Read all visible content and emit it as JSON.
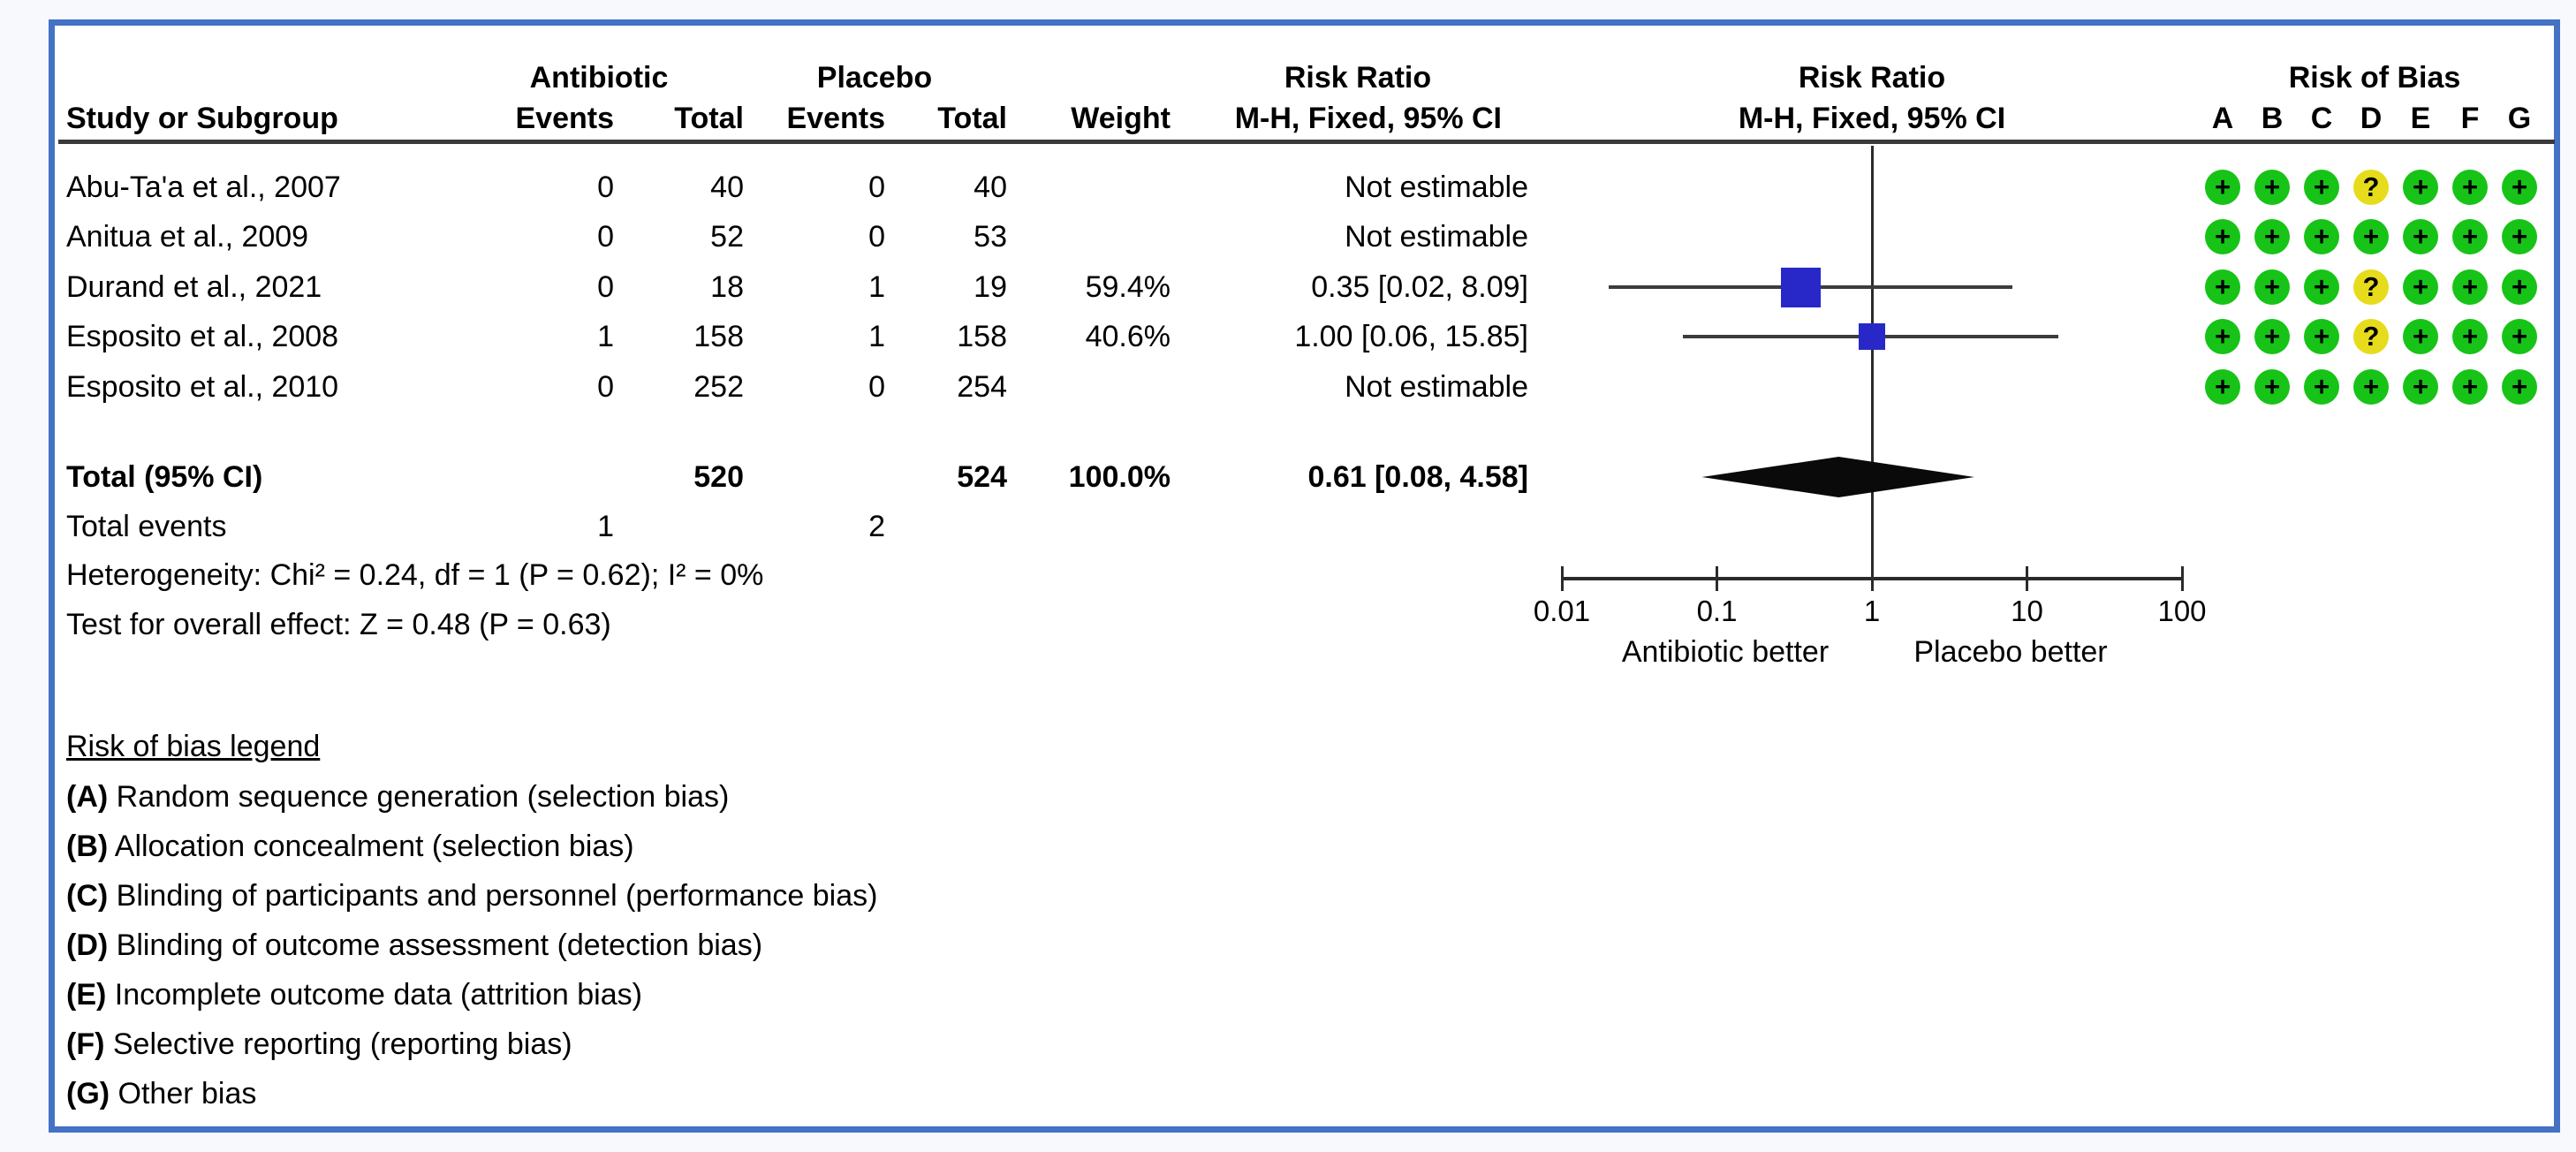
{
  "table": {
    "headers": {
      "study": "Study or Subgroup",
      "group1": "Antibiotic",
      "group2": "Placebo",
      "events": "Events",
      "total": "Total",
      "weight": "Weight",
      "rr_title": "Risk Ratio",
      "rr_sub": "M-H, Fixed, 95% CI",
      "rob_title": "Risk of Bias",
      "rob_letters": [
        "A",
        "B",
        "C",
        "D",
        "E",
        "F",
        "G"
      ]
    },
    "rows": [
      {
        "study": "Abu-Ta'a et al., 2007",
        "e1": "0",
        "t1": "40",
        "e2": "0",
        "t2": "40",
        "weight": "",
        "rr_text": "Not estimable",
        "rr": null,
        "lo": null,
        "hi": null,
        "weight_num": null,
        "rob": [
          "+",
          "+",
          "+",
          "?",
          "+",
          "+",
          "+"
        ]
      },
      {
        "study": "Anitua et al., 2009",
        "e1": "0",
        "t1": "52",
        "e2": "0",
        "t2": "53",
        "weight": "",
        "rr_text": "Not estimable",
        "rr": null,
        "lo": null,
        "hi": null,
        "weight_num": null,
        "rob": [
          "+",
          "+",
          "+",
          "+",
          "+",
          "+",
          "+"
        ]
      },
      {
        "study": "Durand et al., 2021",
        "e1": "0",
        "t1": "18",
        "e2": "1",
        "t2": "19",
        "weight": "59.4%",
        "rr_text": "0.35 [0.02, 8.09]",
        "rr": 0.35,
        "lo": 0.02,
        "hi": 8.09,
        "weight_num": 59.4,
        "rob": [
          "+",
          "+",
          "+",
          "?",
          "+",
          "+",
          "+"
        ]
      },
      {
        "study": "Esposito et al., 2008",
        "e1": "1",
        "t1": "158",
        "e2": "1",
        "t2": "158",
        "weight": "40.6%",
        "rr_text": "1.00 [0.06, 15.85]",
        "rr": 1.0,
        "lo": 0.06,
        "hi": 15.85,
        "weight_num": 40.6,
        "rob": [
          "+",
          "+",
          "+",
          "?",
          "+",
          "+",
          "+"
        ]
      },
      {
        "study": "Esposito et al., 2010",
        "e1": "0",
        "t1": "252",
        "e2": "0",
        "t2": "254",
        "weight": "",
        "rr_text": "Not estimable",
        "rr": null,
        "lo": null,
        "hi": null,
        "weight_num": null,
        "rob": [
          "+",
          "+",
          "+",
          "+",
          "+",
          "+",
          "+"
        ]
      }
    ],
    "total": {
      "label": "Total (95% CI)",
      "t1": "520",
      "t2": "524",
      "weight": "100.0%",
      "rr_text": "0.61 [0.08, 4.58]",
      "rr": 0.61,
      "lo": 0.08,
      "hi": 4.58
    },
    "total_events": {
      "label": "Total events",
      "e1": "1",
      "e2": "2"
    },
    "heterogeneity": "Heterogeneity: Chi² = 0.24, df = 1 (P = 0.62); I² = 0%",
    "overall_effect": "Test for overall effect: Z = 0.48 (P = 0.63)"
  },
  "axis": {
    "ticks": [
      "0.01",
      "0.1",
      "1",
      "10",
      "100"
    ],
    "tick_values": [
      0.01,
      0.1,
      1,
      10,
      100
    ],
    "left_label": "Antibiotic better",
    "right_label": "Placebo better"
  },
  "legend": {
    "title": "Risk of bias legend",
    "items": [
      {
        "tag": "(A)",
        "text": "Random sequence generation (selection bias)"
      },
      {
        "tag": "(B)",
        "text": "Allocation concealment (selection bias)"
      },
      {
        "tag": "(C)",
        "text": "Blinding of participants and personnel (performance bias)"
      },
      {
        "tag": "(D)",
        "text": "Blinding of outcome assessment (detection bias)"
      },
      {
        "tag": "(E)",
        "text": "Incomplete outcome data (attrition bias)"
      },
      {
        "tag": "(F)",
        "text": "Selective reporting (reporting bias)"
      },
      {
        "tag": "(G)",
        "text": "Other bias"
      }
    ]
  },
  "colors": {
    "frame_border": "#4472c4",
    "effect_square": "#2828c8",
    "diamond": "#0a0a0a",
    "rob_low": "#17c317",
    "rob_unclear": "#e6dc1c",
    "lines": "#2b2b2b"
  },
  "chart_data": {
    "type": "scatter",
    "subtype": "forest_plot_meta_analysis",
    "title": "Risk Ratio, M-H, Fixed, 95% CI",
    "x_scale": "log10",
    "x_ticks": [
      0.01,
      0.1,
      1,
      10,
      100
    ],
    "xlim": [
      0.01,
      100
    ],
    "x_axis_labels": {
      "left": "Antibiotic better",
      "right": "Placebo better"
    },
    "studies": [
      {
        "name": "Abu-Ta'a et al., 2007",
        "events_antibiotic": 0,
        "total_antibiotic": 40,
        "events_placebo": 0,
        "total_placebo": 40,
        "weight_pct": null,
        "rr": null,
        "ci": null,
        "estimable": false,
        "risk_of_bias": [
          "+",
          "+",
          "+",
          "?",
          "+",
          "+",
          "+"
        ]
      },
      {
        "name": "Anitua et al., 2009",
        "events_antibiotic": 0,
        "total_antibiotic": 52,
        "events_placebo": 0,
        "total_placebo": 53,
        "weight_pct": null,
        "rr": null,
        "ci": null,
        "estimable": false,
        "risk_of_bias": [
          "+",
          "+",
          "+",
          "+",
          "+",
          "+",
          "+"
        ]
      },
      {
        "name": "Durand et al., 2021",
        "events_antibiotic": 0,
        "total_antibiotic": 18,
        "events_placebo": 1,
        "total_placebo": 19,
        "weight_pct": 59.4,
        "rr": 0.35,
        "ci": [
          0.02,
          8.09
        ],
        "estimable": true,
        "risk_of_bias": [
          "+",
          "+",
          "+",
          "?",
          "+",
          "+",
          "+"
        ]
      },
      {
        "name": "Esposito et al., 2008",
        "events_antibiotic": 1,
        "total_antibiotic": 158,
        "events_placebo": 1,
        "total_placebo": 158,
        "weight_pct": 40.6,
        "rr": 1.0,
        "ci": [
          0.06,
          15.85
        ],
        "estimable": true,
        "risk_of_bias": [
          "+",
          "+",
          "+",
          "?",
          "+",
          "+",
          "+"
        ]
      },
      {
        "name": "Esposito et al., 2010",
        "events_antibiotic": 0,
        "total_antibiotic": 252,
        "events_placebo": 0,
        "total_placebo": 254,
        "weight_pct": null,
        "rr": null,
        "ci": null,
        "estimable": false,
        "risk_of_bias": [
          "+",
          "+",
          "+",
          "+",
          "+",
          "+",
          "+"
        ]
      }
    ],
    "pooled": {
      "label": "Total (95% CI)",
      "total_antibiotic": 520,
      "total_placebo": 524,
      "weight_pct": 100.0,
      "rr": 0.61,
      "ci": [
        0.08,
        4.58
      ],
      "total_events_antibiotic": 1,
      "total_events_placebo": 2
    },
    "heterogeneity": {
      "chi2": 0.24,
      "df": 1,
      "p": 0.62,
      "i2_pct": 0
    },
    "overall_effect": {
      "z": 0.48,
      "p": 0.63
    }
  }
}
